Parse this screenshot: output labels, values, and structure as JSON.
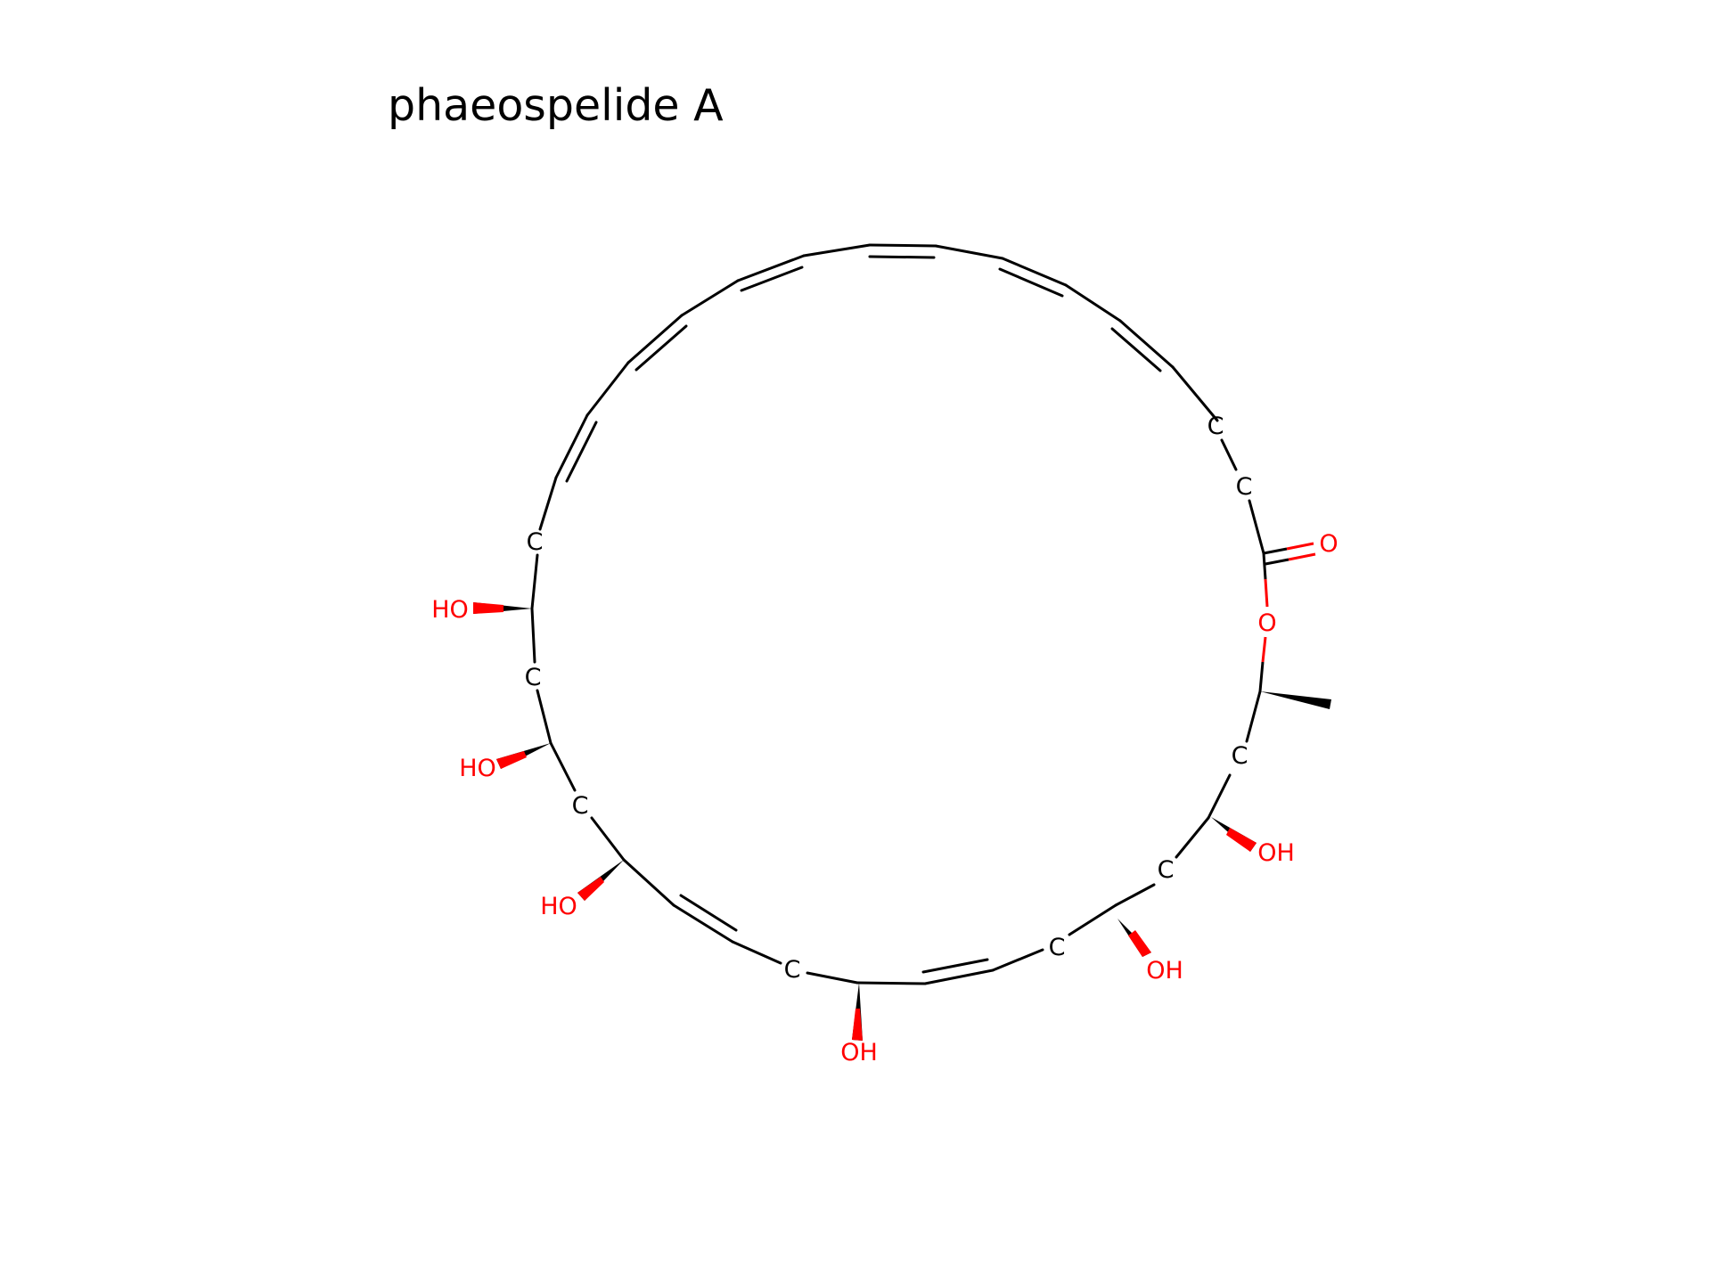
{
  "title": "phaeospelide A",
  "colors": {
    "carbon": "#000000",
    "oxygen": "#ff0000",
    "background": "#ffffff"
  },
  "atoms": {
    "c_upper_right_1": "C",
    "c_upper_right_2": "C",
    "carbonyl_o": "O",
    "ring_o": "O",
    "c_right_1": "C",
    "oh_right_1": "OH",
    "c_right_2": "C",
    "oh_right_2": "OH",
    "c_bottom_right": "C",
    "oh_bottom": "OH",
    "c_bottom_left": "C",
    "oh_left_1": "HO",
    "c_left_1": "C",
    "oh_left_2": "HO",
    "c_left_2": "C",
    "oh_left_3": "HO",
    "c_left_3": "C"
  }
}
